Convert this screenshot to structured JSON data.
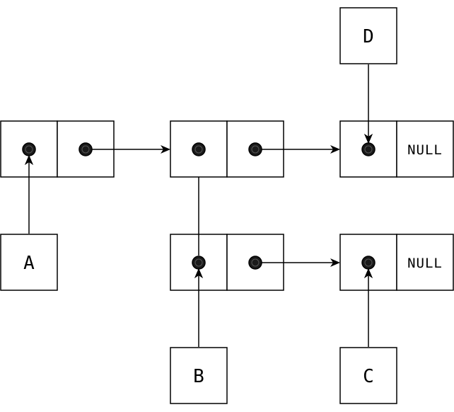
{
  "labels": {
    "a": "A",
    "b": "B",
    "c": "C",
    "d": "D",
    "null_top": "NULL",
    "null_bottom": "NULL"
  },
  "colors": {
    "stroke": "#000000",
    "dot_fill": "#1a1a1a",
    "background": "#ffffff"
  }
}
